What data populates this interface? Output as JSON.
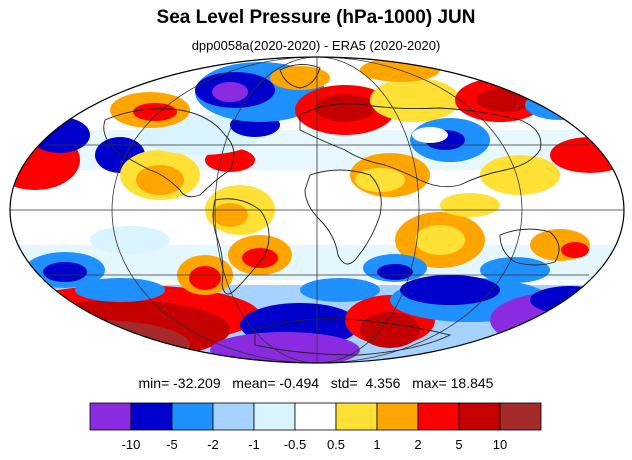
{
  "title": "Sea Level Pressure (hPa-1000) JUN",
  "subtitle": "dpp0058a(2020-2020) - ERA5 (2020-2020)",
  "stats": {
    "min_label": "min=",
    "min": "-32.209",
    "mean_label": "mean=",
    "mean": "-0.494",
    "std_label": "std=",
    "std": "4.356",
    "max_label": "max=",
    "max": "18.845"
  },
  "colorbar": {
    "colors": [
      "#8a2be2",
      "#0000cd",
      "#1e90ff",
      "#a6d2ff",
      "#d9f3ff",
      "#ffffff",
      "#ffe135",
      "#ffa500",
      "#ff0000",
      "#c40000",
      "#a52a2a"
    ],
    "tick_labels": [
      "-10",
      "-5",
      "-2",
      "-1",
      "-0.5",
      "0.5",
      "1",
      "2",
      "5",
      "10"
    ]
  },
  "palette": {
    "deep_violet": "#8a2be2",
    "dark_blue": "#0000cd",
    "blue": "#1e90ff",
    "light_blue": "#a6d2ff",
    "pale_blue": "#d9f3ff",
    "yellow": "#ffe135",
    "orange": "#ffa500",
    "red": "#ff0000",
    "dark_red": "#c40000",
    "brown": "#a52a2a"
  }
}
